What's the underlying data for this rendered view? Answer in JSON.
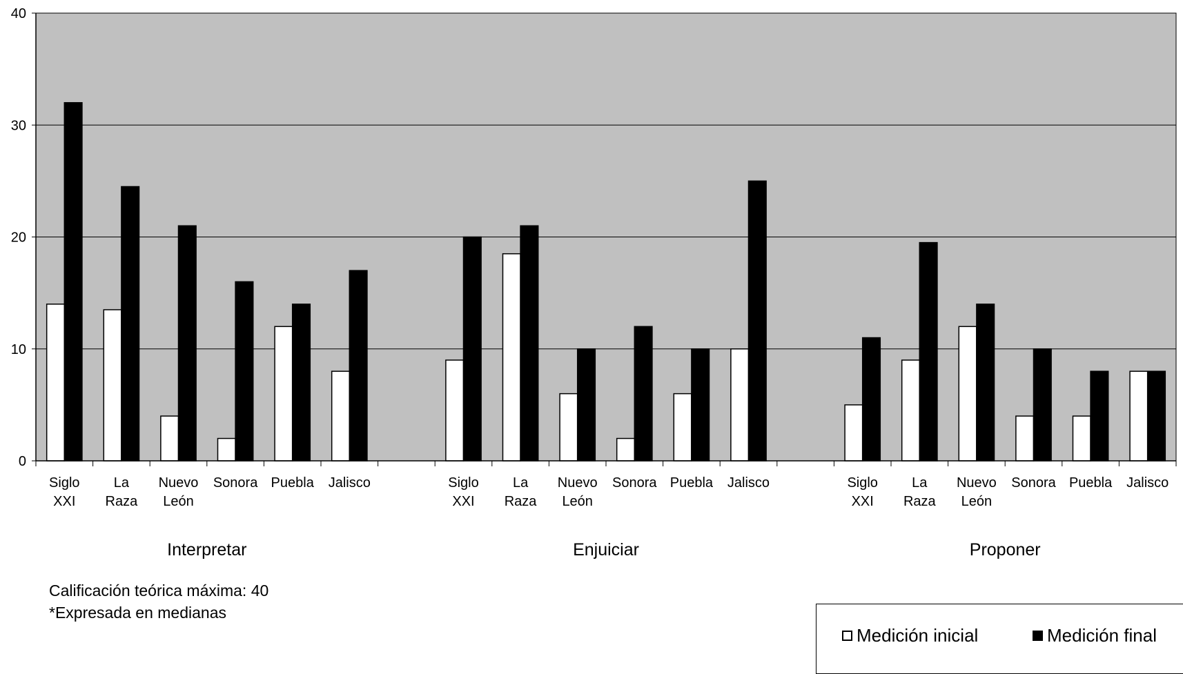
{
  "chart_data": {
    "type": "bar",
    "ylim": [
      0,
      40
    ],
    "yticks": [
      0,
      10,
      20,
      30,
      40
    ],
    "grid": true,
    "groups": [
      {
        "name": "Interpretar",
        "categories": [
          "Siglo XXI",
          "La Raza",
          "Nuevo León",
          "Sonora",
          "Puebla",
          "Jalisco"
        ]
      },
      {
        "name": "Enjuiciar",
        "categories": [
          "Siglo XXI",
          "La Raza",
          "Nuevo León",
          "Sonora",
          "Puebla",
          "Jalisco"
        ]
      },
      {
        "name": "Proponer",
        "categories": [
          "Siglo XXI",
          "La Raza",
          "Nuevo León",
          "Sonora",
          "Puebla",
          "Jalisco"
        ]
      }
    ],
    "series": [
      {
        "name": "Medición inicial",
        "color": "#ffffff",
        "values": [
          14,
          13.5,
          4,
          2,
          12,
          8,
          9,
          18.5,
          6,
          2,
          6,
          10,
          5,
          9,
          12,
          4,
          4,
          8
        ]
      },
      {
        "name": "Medición final",
        "color": "#000000",
        "values": [
          32,
          24.5,
          21,
          16,
          14,
          17,
          20,
          21,
          10,
          12,
          10,
          25,
          11,
          19.5,
          14,
          10,
          8,
          8
        ]
      }
    ],
    "plot_background": "#c0c0c0",
    "legend_position": "bottom-right"
  },
  "notes": {
    "line1": "Calificación teórica máxima: 40",
    "line2": "*Expresada en medianas"
  },
  "legend": {
    "initial_label": "Medición inicial",
    "final_label": "Medición final"
  }
}
